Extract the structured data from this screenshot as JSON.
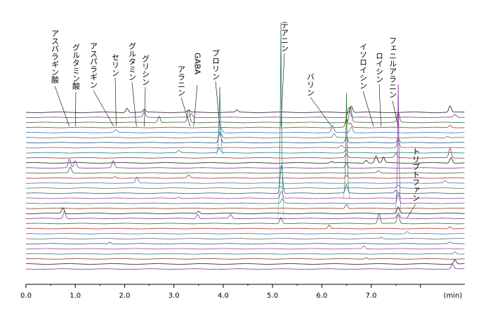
{
  "chart_data": {
    "type": "line",
    "title": "",
    "xlabel": "",
    "ylabel": "",
    "xlim": [
      0.0,
      8.9
    ],
    "x_unit_label": "(min)",
    "x_ticks": [
      "0.0",
      "1.0",
      "2.0",
      "3.0",
      "4.0",
      "5.0",
      "6.0",
      "7.0"
    ],
    "x_tick_values": [
      0,
      1,
      2,
      3,
      4,
      5,
      6,
      7
    ],
    "extra_tick": 8.0,
    "grid": false,
    "trace_count": 32,
    "trace_colors": [
      "#1a1a1a",
      "#7a3b8f",
      "#2e6b2e",
      "#b52a2a",
      "#3a7ab8",
      "#6a6a6a",
      "#2a5a8a",
      "#9a4a9a",
      "#1f7f7f",
      "#8f3a3a"
    ],
    "peak_labels": [
      {
        "name": "アスパラギン酸",
        "x": 0.88
      },
      {
        "name": "グルタミン酸",
        "x": 1.0
      },
      {
        "name": "アスパラギン",
        "x": 1.78
      },
      {
        "name": "セリン",
        "x": 1.83
      },
      {
        "name": "グルタミン",
        "x": 2.24
      },
      {
        "name": "グリシン",
        "x": 2.4
      },
      {
        "name": "アラニン",
        "x": 3.33
      },
      {
        "name": "GABA",
        "x": 3.4
      },
      {
        "name": "プロリン",
        "x": 3.93
      },
      {
        "name": "テアニン",
        "x": 5.17
      },
      {
        "name": "バリン",
        "x": 6.2
      },
      {
        "name": "イソロイシン",
        "x": 7.05
      },
      {
        "name": "ロイシン",
        "x": 7.2
      },
      {
        "name": "フェニルアラニン",
        "x": 7.55
      },
      {
        "name": "トリプトファン",
        "x": 7.73
      }
    ],
    "series": [
      {
        "peaks": [
          [
            2.05,
            6
          ],
          [
            2.4,
            4
          ],
          [
            3.3,
            3
          ],
          [
            4.28,
            3
          ],
          [
            6.6,
            9
          ],
          [
            8.6,
            9
          ]
        ]
      },
      {
        "peaks": [
          [
            2.4,
            8
          ],
          [
            3.35,
            5
          ],
          [
            6.55,
            14
          ],
          [
            8.7,
            4
          ]
        ]
      },
      {
        "peaks": [
          [
            2.7,
            9
          ],
          [
            3.3,
            18
          ],
          [
            6.58,
            22
          ],
          [
            7.55,
            14
          ]
        ]
      },
      {
        "peaks": [
          [
            6.5,
            12
          ],
          [
            6.58,
            6
          ],
          [
            8.6,
            3
          ]
        ]
      },
      {
        "peaks": [
          [
            1.82,
            4
          ],
          [
            3.95,
            8
          ],
          [
            6.22,
            10
          ],
          [
            6.6,
            8
          ]
        ]
      },
      {
        "peaks": [
          [
            3.95,
            6
          ],
          [
            6.25,
            5
          ],
          [
            8.55,
            2
          ]
        ]
      },
      {
        "peaks": [
          [
            3.93,
            16
          ],
          [
            6.5,
            8
          ],
          [
            7.55,
            6
          ]
        ]
      },
      {
        "peaks": [
          [
            6.4,
            4
          ],
          [
            7.55,
            10
          ]
        ]
      },
      {
        "peaks": [
          [
            3.1,
            3
          ],
          [
            3.92,
            6
          ],
          [
            6.49,
            4
          ]
        ]
      },
      {
        "peaks": [
          [
            6.5,
            5
          ],
          [
            7.5,
            6
          ],
          [
            8.6,
            14
          ]
        ]
      },
      {
        "peaks": [
          [
            6.2,
            2
          ],
          [
            6.9,
            4
          ],
          [
            7.1,
            10
          ],
          [
            7.25,
            8
          ],
          [
            8.62,
            8
          ]
        ]
      },
      {
        "peaks": [
          [
            0.88,
            12
          ],
          [
            1.0,
            10
          ],
          [
            1.77,
            10
          ],
          [
            6.5,
            6
          ]
        ]
      },
      {
        "peaks": [
          [
            0.9,
            8
          ],
          [
            7.15,
            3
          ]
        ]
      },
      {
        "peaks": [
          [
            1.8,
            2
          ],
          [
            3.3,
            4
          ],
          [
            6.5,
            4
          ]
        ]
      },
      {
        "peaks": [
          [
            2.25,
            8
          ],
          [
            8.5,
            3
          ]
        ]
      },
      {
        "peaks": [
          [
            5.15,
            3
          ],
          [
            7.55,
            4
          ]
        ]
      },
      {
        "peaks": [
          [
            5.18,
            40
          ],
          [
            6.5,
            12
          ],
          [
            7.5,
            4
          ]
        ]
      },
      {
        "peaks": [
          [
            3.1,
            2
          ],
          [
            5.18,
            10
          ],
          [
            7.55,
            8
          ]
        ]
      },
      {
        "peaks": [
          [
            5.2,
            6
          ],
          [
            7.55,
            12
          ]
        ]
      },
      {
        "peaks": [
          [
            6.5,
            6
          ]
        ]
      },
      {
        "peaks": [
          [
            0.75,
            8
          ],
          [
            3.5,
            3
          ],
          [
            7.55,
            9
          ]
        ]
      },
      {
        "peaks": [
          [
            0.78,
            10
          ],
          [
            3.48,
            6
          ],
          [
            4.15,
            6
          ],
          [
            7.55,
            8
          ]
        ]
      },
      {
        "peaks": [
          [
            5.17,
            9
          ],
          [
            7.16,
            14
          ],
          [
            7.55,
            12
          ]
        ]
      },
      {
        "peaks": [
          [
            6.15,
            5
          ],
          [
            8.6,
            3
          ]
        ]
      },
      {
        "peaks": [
          [
            7.73,
            3
          ]
        ]
      },
      {
        "peaks": [
          [
            7.2,
            2
          ]
        ]
      },
      {
        "peaks": [
          [
            1.7,
            2
          ],
          [
            8.6,
            2
          ]
        ]
      },
      {
        "peaks": [
          [
            6.85,
            4
          ]
        ]
      },
      {
        "peaks": [
          [
            8.7,
            3
          ]
        ]
      },
      {
        "peaks": [
          [
            6.9,
            2
          ]
        ]
      },
      {
        "peaks": [
          [
            8.7,
            6
          ]
        ]
      },
      {
        "peaks": [
          [
            8.65,
            7
          ]
        ]
      }
    ]
  }
}
